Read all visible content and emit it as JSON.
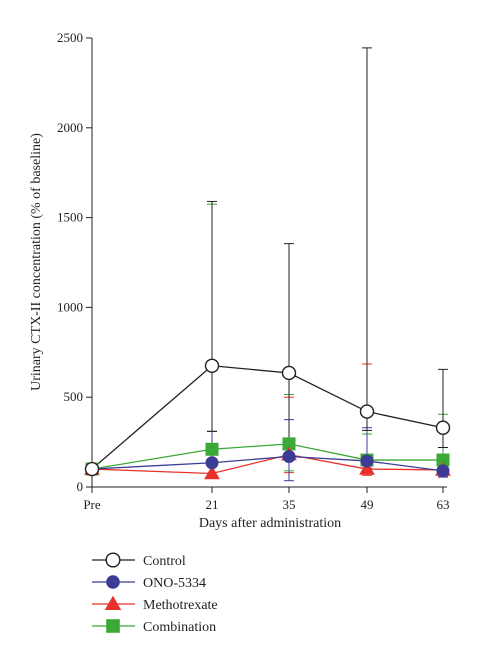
{
  "chart_data": {
    "type": "line",
    "title": "",
    "xlabel": "Days after administration",
    "ylabel": "Urinary CTX-II concentration (% of baseline)",
    "categories": [
      "Pre",
      "21",
      "35",
      "49",
      "63"
    ],
    "ylim": [
      0,
      2500
    ],
    "yticks": [
      "0",
      "500",
      "1000",
      "1500",
      "2000",
      "2500"
    ],
    "grid": false,
    "legend_position": "bottom-left",
    "series": [
      {
        "name": "Control",
        "marker": "open-circle",
        "color": "#231f20",
        "fill": "#ffffff",
        "values": [
          100,
          675,
          635,
          420,
          330
        ],
        "error_upper": [
          100,
          1590,
          1355,
          2445,
          655
        ],
        "error_lower": [
          100,
          310,
          170,
          315,
          220
        ]
      },
      {
        "name": "ONO-5334",
        "marker": "circle",
        "color": "#3c3c96",
        "fill": "#3c3c96",
        "values": [
          100,
          135,
          170,
          145,
          90
        ],
        "error_upper": [
          100,
          310,
          375,
          330,
          150
        ],
        "error_lower": [
          100,
          135,
          35,
          105,
          55
        ]
      },
      {
        "name": "Methotrexate",
        "marker": "triangle",
        "color": "#e8312a",
        "fill": "#e8312a",
        "values": [
          100,
          75,
          180,
          100,
          95
        ],
        "error_upper": [
          100,
          75,
          500,
          685,
          120
        ],
        "error_lower": [
          100,
          75,
          80,
          65,
          60
        ]
      },
      {
        "name": "Combination",
        "marker": "square",
        "color": "#3aa935",
        "fill": "#3aa935",
        "values": [
          100,
          210,
          240,
          150,
          150
        ],
        "error_upper": [
          100,
          1575,
          515,
          295,
          405
        ],
        "error_lower": [
          100,
          210,
          90,
          75,
          70
        ]
      }
    ]
  }
}
